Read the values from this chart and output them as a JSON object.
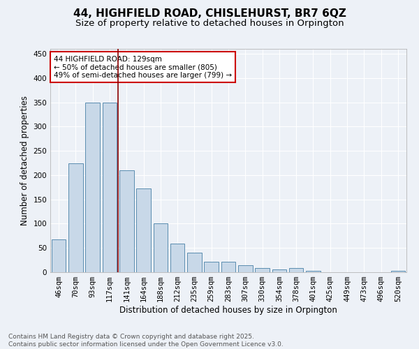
{
  "title": "44, HIGHFIELD ROAD, CHISLEHURST, BR7 6QZ",
  "subtitle": "Size of property relative to detached houses in Orpington",
  "xlabel": "Distribution of detached houses by size in Orpington",
  "ylabel": "Number of detached properties",
  "categories": [
    "46sqm",
    "70sqm",
    "93sqm",
    "117sqm",
    "141sqm",
    "164sqm",
    "188sqm",
    "212sqm",
    "235sqm",
    "259sqm",
    "283sqm",
    "307sqm",
    "330sqm",
    "354sqm",
    "378sqm",
    "401sqm",
    "425sqm",
    "449sqm",
    "473sqm",
    "496sqm",
    "520sqm"
  ],
  "values": [
    67,
    224,
    350,
    350,
    210,
    172,
    100,
    59,
    40,
    21,
    21,
    14,
    8,
    6,
    8,
    3,
    0,
    0,
    0,
    0,
    3
  ],
  "bar_color": "#c8d8e8",
  "bar_edge_color": "#5b8db0",
  "background_color": "#edf1f7",
  "grid_color": "#ffffff",
  "vline_x": 3.5,
  "vline_color": "#8b0000",
  "annotation_text": "44 HIGHFIELD ROAD: 129sqm\n← 50% of detached houses are smaller (805)\n49% of semi-detached houses are larger (799) →",
  "annotation_box_facecolor": "#ffffff",
  "annotation_box_edgecolor": "#cc0000",
  "ylim": [
    0,
    460
  ],
  "yticks": [
    0,
    50,
    100,
    150,
    200,
    250,
    300,
    350,
    400,
    450
  ],
  "footer_text": "Contains HM Land Registry data © Crown copyright and database right 2025.\nContains public sector information licensed under the Open Government Licence v3.0.",
  "title_fontsize": 11,
  "subtitle_fontsize": 9.5,
  "axis_label_fontsize": 8.5,
  "tick_fontsize": 7.5,
  "annotation_fontsize": 7.5,
  "footer_fontsize": 6.5
}
